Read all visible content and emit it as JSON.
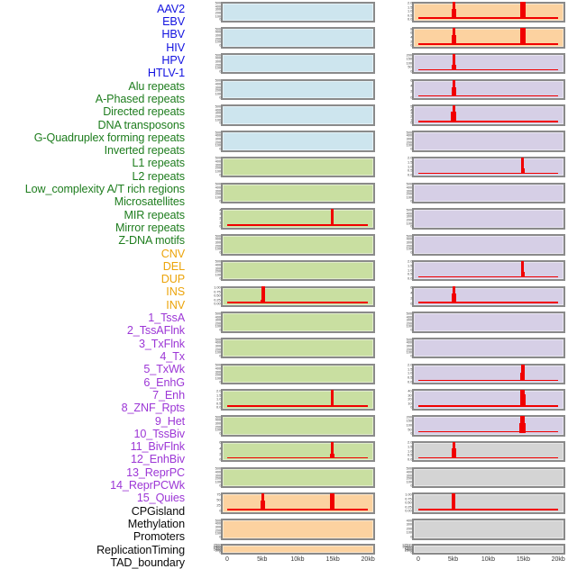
{
  "chart_data": {
    "type": "area",
    "description_title": "",
    "x_axis": {
      "tick_labels": [
        "0",
        "5kb",
        "10kb",
        "15kb",
        "20kb"
      ],
      "tick_pcts": [
        4.1,
        26.8,
        49.7,
        72.6,
        95.4
      ],
      "range_kb": [
        0,
        20
      ]
    },
    "colors": {
      "label_virus": "#1212e0",
      "label_repeat": "#1e7d1e",
      "label_sv": "#eca40a",
      "label_chromhmm": "#9c36d6",
      "label_annotation": "#0a0a0a",
      "panel_virus": "#cde5ee",
      "panel_repeat": "#c9dfa1",
      "panel_sv": "#fcd2a0",
      "panel_chromhmm": "#d6cfe6",
      "panel_annotation": "#d4d4d4",
      "signal": "#f10000",
      "panel_border": "#8a8a8a",
      "tick_text": "#3d3d3d",
      "axis_text": "#383838"
    },
    "tracks": [
      {
        "label": "AAV2",
        "group": "virus",
        "column": "left",
        "yticks": [
          "500",
          "400",
          "300",
          "200",
          "100",
          "0"
        ],
        "spikes": []
      },
      {
        "label": "EBV",
        "group": "virus",
        "column": "left",
        "yticks": [
          "500",
          "400",
          "300",
          "200",
          "100",
          "0"
        ],
        "spikes": []
      },
      {
        "label": "HBV",
        "group": "virus",
        "column": "left",
        "yticks": [
          "500",
          "400",
          "300",
          "200",
          "100",
          "0"
        ],
        "spikes": []
      },
      {
        "label": "HIV",
        "group": "virus",
        "column": "left",
        "yticks": [
          "500",
          "400",
          "300",
          "200",
          "100",
          "0"
        ],
        "spikes": []
      },
      {
        "label": "HPV",
        "group": "virus",
        "column": "left",
        "yticks": [
          "500",
          "400",
          "300",
          "200",
          "100",
          "0"
        ],
        "spikes": []
      },
      {
        "label": "HTLV-1",
        "group": "virus",
        "column": "left",
        "yticks": [
          "500",
          "400",
          "300",
          "200",
          "100",
          "0"
        ],
        "spikes": []
      },
      {
        "label": "Alu repeats",
        "group": "repeat",
        "column": "left",
        "yticks": [
          "500",
          "400",
          "300",
          "200",
          "100",
          "0"
        ],
        "spikes": []
      },
      {
        "label": "A-Phased repeats",
        "group": "repeat",
        "column": "left",
        "yticks": [
          "500",
          "400",
          "300",
          "200",
          "100",
          "0"
        ],
        "spikes": []
      },
      {
        "label": "Directed repeats",
        "group": "repeat",
        "column": "left",
        "yticks": [
          "4",
          "3",
          "2",
          "1",
          "0"
        ],
        "spikes": [
          {
            "kb": 15,
            "pct": 72.6,
            "tw": 3,
            "th": 95,
            "bw": 4,
            "bh": 10
          }
        ]
      },
      {
        "label": "DNA transposons",
        "group": "repeat",
        "column": "left",
        "yticks": [
          "500",
          "400",
          "300",
          "200",
          "100",
          "0"
        ],
        "spikes": []
      },
      {
        "label": "G-Quadruplex forming repeats",
        "group": "repeat",
        "column": "left",
        "yticks": [
          "500",
          "400",
          "300",
          "200",
          "100",
          "0"
        ],
        "spikes": []
      },
      {
        "label": "Inverted repeats",
        "group": "repeat",
        "column": "left",
        "yticks": [
          "1.00",
          "0.75",
          "0.50",
          "0.25",
          "0.00"
        ],
        "spikes": [
          {
            "kb": 5,
            "pct": 26.8,
            "tw": 4,
            "th": 97,
            "bw": 5,
            "bh": 20
          }
        ]
      },
      {
        "label": "L1 repeats",
        "group": "repeat",
        "column": "left",
        "yticks": [
          "500",
          "400",
          "300",
          "200",
          "100",
          "0"
        ],
        "spikes": []
      },
      {
        "label": "L2 repeats",
        "group": "repeat",
        "column": "left",
        "yticks": [
          "500",
          "400",
          "300",
          "200",
          "100",
          "0"
        ],
        "spikes": []
      },
      {
        "label": "Low_complexity A/T rich regions",
        "group": "repeat",
        "column": "left",
        "yticks": [
          "500",
          "400",
          "300",
          "200",
          "100",
          "0"
        ],
        "spikes": []
      },
      {
        "label": "Microsatellites",
        "group": "repeat",
        "column": "left",
        "yticks": [
          "2.0",
          "1.5",
          "1.0",
          "0.5",
          "0.0"
        ],
        "spikes": [
          {
            "kb": 15,
            "pct": 72.6,
            "tw": 3,
            "th": 95,
            "bw": 5,
            "bh": 10
          }
        ]
      },
      {
        "label": "MIR repeats",
        "group": "repeat",
        "column": "left",
        "yticks": [
          "500",
          "400",
          "300",
          "200",
          "100",
          "0"
        ],
        "spikes": []
      },
      {
        "label": "Mirror repeats",
        "group": "repeat",
        "column": "left",
        "yticks": [
          "6",
          "4",
          "2",
          "0"
        ],
        "spikes": [
          {
            "kb": 15,
            "pct": 72.6,
            "tw": 3,
            "th": 95,
            "bw": 5,
            "bh": 28
          }
        ]
      },
      {
        "label": "Z-DNA motifs",
        "group": "repeat",
        "column": "left",
        "yticks": [
          "500",
          "400",
          "300",
          "200",
          "100",
          "0"
        ],
        "spikes": []
      },
      {
        "label": "CNV",
        "group": "sv",
        "column": "left",
        "yticks": [
          "75",
          "50",
          "25",
          "0"
        ],
        "spikes": [
          {
            "kb": 5,
            "pct": 26.8,
            "tw": 3,
            "th": 95,
            "bw": 5,
            "bh": 55
          },
          {
            "kb": 15,
            "pct": 72.6,
            "tw": 5,
            "th": 97,
            "bw": 5,
            "bh": 0
          }
        ]
      },
      {
        "label": "DEL",
        "group": "sv",
        "column": "left",
        "yticks": [
          "500",
          "400",
          "300",
          "200",
          "100",
          "0"
        ],
        "spikes": []
      },
      {
        "label": "DUP",
        "group": "sv",
        "column": "left",
        "yticks": [
          "2500",
          "2000",
          "1500",
          "1000",
          "500",
          "0"
        ],
        "spikes": []
      },
      {
        "label": "INS",
        "group": "sv",
        "column": "right",
        "yticks": [
          "2.0",
          "1.5",
          "1.0",
          "0.5",
          "0.0"
        ],
        "spikes": [
          {
            "kb": 5,
            "pct": 26.8,
            "tw": 3,
            "th": 97,
            "bw": 5,
            "bh": 55
          },
          {
            "kb": 15,
            "pct": 72.6,
            "tw": 6,
            "th": 97,
            "bw": 6,
            "bh": 0
          }
        ]
      },
      {
        "label": "INV",
        "group": "sv",
        "column": "right",
        "yticks": [
          "8",
          "6",
          "4",
          "2",
          "0"
        ],
        "spikes": [
          {
            "kb": 5,
            "pct": 26.8,
            "tw": 3,
            "th": 97,
            "bw": 5,
            "bh": 55
          },
          {
            "kb": 15,
            "pct": 72.6,
            "tw": 6,
            "th": 97,
            "bw": 6,
            "bh": 0
          }
        ]
      },
      {
        "label": "1_TssA",
        "group": "chromhmm",
        "column": "right",
        "yticks": [
          "200",
          "150",
          "100",
          "50",
          "0"
        ],
        "spikes": [
          {
            "kb": 5,
            "pct": 26.8,
            "tw": 3,
            "th": 95,
            "bw": 5,
            "bh": 35
          }
        ]
      },
      {
        "label": "2_TssAFlnk",
        "group": "chromhmm",
        "column": "right",
        "yticks": [
          "6",
          "4",
          "2",
          "0"
        ],
        "spikes": [
          {
            "kb": 5,
            "pct": 26.8,
            "tw": 3,
            "th": 95,
            "bw": 5,
            "bh": 50
          }
        ]
      },
      {
        "label": "3_TxFlnk",
        "group": "chromhmm",
        "column": "right",
        "yticks": [
          "5",
          "4",
          "3",
          "2",
          "1",
          "0"
        ],
        "spikes": [
          {
            "kb": 5,
            "pct": 26.8,
            "tw": 3,
            "th": 97,
            "bw": 6,
            "bh": 60
          }
        ]
      },
      {
        "label": "4_Tx",
        "group": "chromhmm",
        "column": "right",
        "yticks": [
          "500",
          "400",
          "300",
          "200",
          "100",
          "0"
        ],
        "spikes": []
      },
      {
        "label": "5_TxWk",
        "group": "chromhmm",
        "column": "right",
        "yticks": [
          "2.0",
          "1.5",
          "1.0",
          "0.5",
          "0.0"
        ],
        "spikes": [
          {
            "kb": 15,
            "pct": 72.6,
            "tw": 3,
            "th": 95,
            "bw": 4,
            "bh": 35
          }
        ]
      },
      {
        "label": "6_EnhG",
        "group": "chromhmm",
        "column": "right",
        "yticks": [
          "500",
          "400",
          "300",
          "200",
          "100",
          "0"
        ],
        "spikes": []
      },
      {
        "label": "7_Enh",
        "group": "chromhmm",
        "column": "right",
        "yticks": [
          "500",
          "400",
          "300",
          "200",
          "100",
          "0"
        ],
        "spikes": []
      },
      {
        "label": "8_ZNF_Rpts",
        "group": "chromhmm",
        "column": "right",
        "yticks": [
          "500",
          "400",
          "300",
          "200",
          "100",
          "0"
        ],
        "spikes": []
      },
      {
        "label": "9_Het",
        "group": "chromhmm",
        "column": "right",
        "yticks": [
          "2.0",
          "1.5",
          "1.0",
          "0.5",
          "0.0"
        ],
        "spikes": [
          {
            "kb": 15,
            "pct": 72.6,
            "tw": 3,
            "th": 95,
            "bw": 4,
            "bh": 30
          }
        ]
      },
      {
        "label": "10_TssBiv",
        "group": "chromhmm",
        "column": "right",
        "yticks": [
          "6",
          "4",
          "2",
          "0"
        ],
        "spikes": [
          {
            "kb": 5,
            "pct": 26.8,
            "tw": 3,
            "th": 97,
            "bw": 5,
            "bh": 55
          }
        ]
      },
      {
        "label": "11_BivFlnk",
        "group": "chromhmm",
        "column": "right",
        "yticks": [
          "500",
          "400",
          "300",
          "200",
          "100",
          "0"
        ],
        "spikes": []
      },
      {
        "label": "12_EnhBiv",
        "group": "chromhmm",
        "column": "right",
        "yticks": [
          "500",
          "400",
          "300",
          "200",
          "100",
          "0"
        ],
        "spikes": []
      },
      {
        "label": "13_ReprPC",
        "group": "chromhmm",
        "column": "right",
        "yticks": [
          "2.0",
          "1.5",
          "1.0",
          "0.5",
          "0.0"
        ],
        "spikes": [
          {
            "kb": 15,
            "pct": 72.6,
            "tw": 4,
            "th": 95,
            "bw": 5,
            "bh": 45
          }
        ]
      },
      {
        "label": "14_ReprPCWk",
        "group": "chromhmm",
        "column": "right",
        "yticks": [
          "40",
          "30",
          "20",
          "10",
          "0"
        ],
        "spikes": [
          {
            "kb": 15,
            "pct": 72.6,
            "tw": 5,
            "th": 97,
            "bw": 6,
            "bh": 70
          }
        ]
      },
      {
        "label": "15_Quies",
        "group": "chromhmm",
        "column": "right",
        "yticks": [
          "200",
          "150",
          "100",
          "50",
          "0"
        ],
        "spikes": [
          {
            "kb": 15,
            "pct": 72.6,
            "tw": 5,
            "th": 97,
            "bw": 7,
            "bh": 55
          }
        ]
      },
      {
        "label": "CPGisland",
        "group": "annotation",
        "column": "right",
        "yticks": [
          "2.0",
          "1.5",
          "1.0",
          "0.5",
          "0.0"
        ],
        "spikes": [
          {
            "kb": 5,
            "pct": 26.8,
            "tw": 3,
            "th": 97,
            "bw": 5,
            "bh": 60
          }
        ]
      },
      {
        "label": "Methylation",
        "group": "annotation",
        "column": "right",
        "yticks": [
          "500",
          "400",
          "300",
          "200",
          "100",
          "0"
        ],
        "spikes": []
      },
      {
        "label": "Promoters",
        "group": "annotation",
        "column": "right",
        "yticks": [
          "1.00",
          "0.75",
          "0.50",
          "0.25",
          "0.00"
        ],
        "spikes": [
          {
            "kb": 5,
            "pct": 26.8,
            "tw": 4,
            "th": 97,
            "bw": 4,
            "bh": 15
          }
        ]
      },
      {
        "label": "ReplicationTiming",
        "group": "annotation",
        "column": "right",
        "yticks": [
          "400",
          "300",
          "200",
          "100",
          "0"
        ],
        "spikes": []
      },
      {
        "label": "TAD_boundary",
        "group": "annotation",
        "column": "right",
        "yticks": [
          "12500",
          "10000",
          "7500",
          "5000",
          "2500",
          "0"
        ],
        "spikes": []
      }
    ]
  }
}
